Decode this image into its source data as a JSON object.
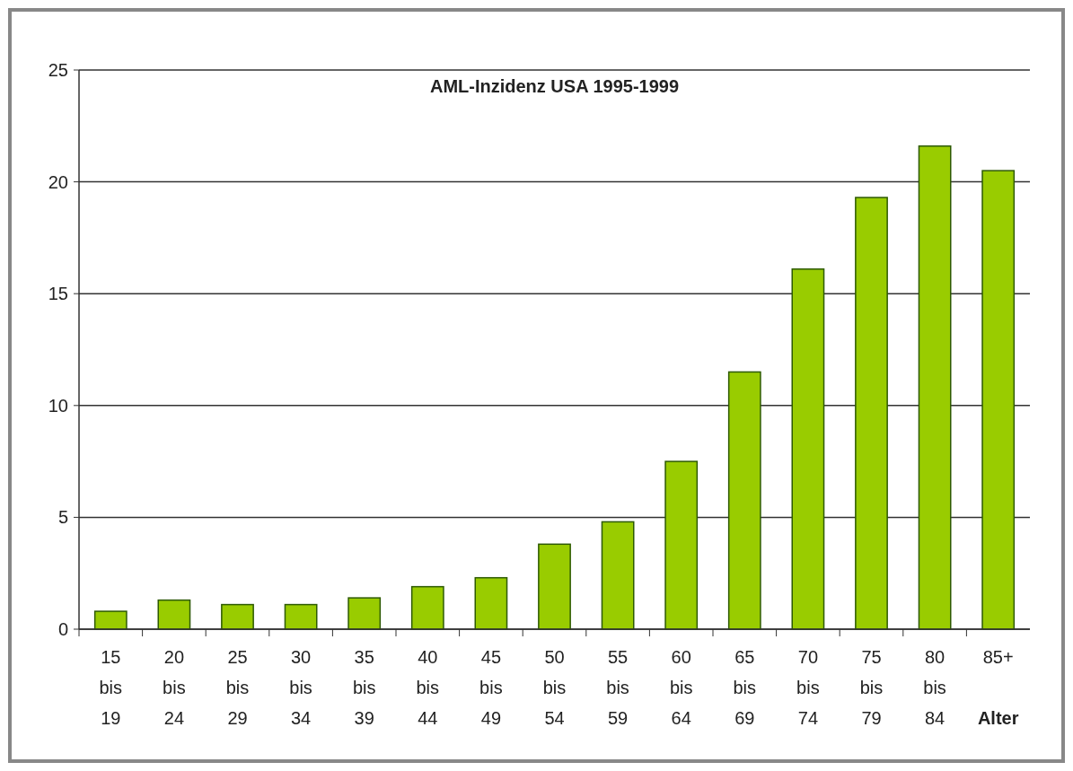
{
  "chart_data": {
    "type": "bar",
    "title": "AML-Inzidenz USA 1995-1999",
    "xlabel": "Alter",
    "categories": [
      "15 bis 19",
      "20 bis 24",
      "25 bis 29",
      "30 bis 34",
      "35 bis 39",
      "40 bis 44",
      "45 bis 49",
      "50 bis 54",
      "55 bis 59",
      "60 bis 64",
      "65 bis 69",
      "70 bis 74",
      "75 bis 79",
      "80 bis 84",
      "85+"
    ],
    "values": [
      0.8,
      1.3,
      1.1,
      1.1,
      1.4,
      1.9,
      2.3,
      3.8,
      4.8,
      7.5,
      11.5,
      16.1,
      19.3,
      21.6,
      20.5
    ],
    "color": "#99cc00",
    "ylim": [
      0,
      25
    ],
    "yticks": [
      0,
      5,
      10,
      15,
      20,
      25
    ],
    "grid": "y"
  }
}
